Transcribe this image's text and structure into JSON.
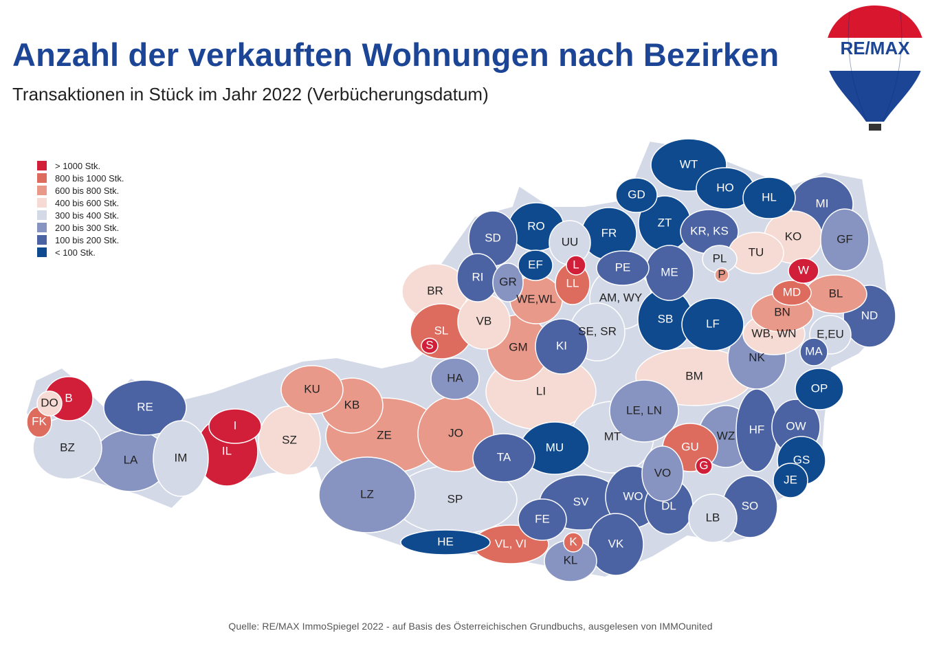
{
  "header": {
    "title": "Anzahl der verkauften Wohnungen nach Bezirken",
    "subtitle": "Transaktionen in Stück im Jahr 2022 (Verbücherungsdatum)"
  },
  "logo": {
    "text": "RE/MAX",
    "icon": "hot-air-balloon-logo"
  },
  "legend": [
    {
      "label": "> 1000 Stk.",
      "color": "#d11f3a"
    },
    {
      "label": "800 bis 1000 Stk.",
      "color": "#dd6b5e"
    },
    {
      "label": "600 bis 800 Stk.",
      "color": "#e8998a"
    },
    {
      "label": "400 bis 600 Stk.",
      "color": "#f5dbd3"
    },
    {
      "label": "300 bis 400 Stk.",
      "color": "#d4d9e8"
    },
    {
      "label": "200 bis 300 Stk.",
      "color": "#8794c2"
    },
    {
      "label": "100 bis 200 Stk.",
      "color": "#4b62a3"
    },
    {
      "label": "< 100 Stk.",
      "color": "#0f4a8f"
    }
  ],
  "districts": [
    {
      "code": "WT",
      "class": 7
    },
    {
      "code": "GD",
      "class": 7
    },
    {
      "code": "HO",
      "class": 7
    },
    {
      "code": "HL",
      "class": 7
    },
    {
      "code": "MI",
      "class": 6
    },
    {
      "code": "RO",
      "class": 7
    },
    {
      "code": "FR",
      "class": 7
    },
    {
      "code": "ZT",
      "class": 7
    },
    {
      "code": "KR, KS",
      "class": 6
    },
    {
      "code": "KO",
      "class": 3
    },
    {
      "code": "GF",
      "class": 5
    },
    {
      "code": "SD",
      "class": 6
    },
    {
      "code": "UU",
      "class": 4
    },
    {
      "code": "TU",
      "class": 3
    },
    {
      "code": "EF",
      "class": 7
    },
    {
      "code": "L",
      "class": 0
    },
    {
      "code": "PE",
      "class": 6
    },
    {
      "code": "ME",
      "class": 6
    },
    {
      "code": "PL",
      "class": 4
    },
    {
      "code": "P",
      "class": 2
    },
    {
      "code": "W",
      "class": 0
    },
    {
      "code": "RI",
      "class": 6
    },
    {
      "code": "GR",
      "class": 5
    },
    {
      "code": "BR",
      "class": 3
    },
    {
      "code": "WE,WL",
      "class": 2
    },
    {
      "code": "LL",
      "class": 1
    },
    {
      "code": "AM, WY",
      "class": 4
    },
    {
      "code": "MD",
      "class": 1
    },
    {
      "code": "BL",
      "class": 2
    },
    {
      "code": "SB",
      "class": 7
    },
    {
      "code": "LF",
      "class": 7
    },
    {
      "code": "BN",
      "class": 2
    },
    {
      "code": "ND",
      "class": 6
    },
    {
      "code": "SL",
      "class": 1
    },
    {
      "code": "VB",
      "class": 3
    },
    {
      "code": "SE, SR",
      "class": 4
    },
    {
      "code": "WB, WN",
      "class": 3
    },
    {
      "code": "E,EU",
      "class": 4
    },
    {
      "code": "S",
      "class": 0
    },
    {
      "code": "GM",
      "class": 2
    },
    {
      "code": "KI",
      "class": 6
    },
    {
      "code": "NK",
      "class": 5
    },
    {
      "code": "MA",
      "class": 6
    },
    {
      "code": "HA",
      "class": 5
    },
    {
      "code": "BM",
      "class": 3
    },
    {
      "code": "OP",
      "class": 7
    },
    {
      "code": "B",
      "class": 0
    },
    {
      "code": "DO",
      "class": 3
    },
    {
      "code": "RE",
      "class": 6
    },
    {
      "code": "KU",
      "class": 2
    },
    {
      "code": "KB",
      "class": 2
    },
    {
      "code": "LI",
      "class": 3
    },
    {
      "code": "FK",
      "class": 1
    },
    {
      "code": "I",
      "class": 0
    },
    {
      "code": "LE, LN",
      "class": 5
    },
    {
      "code": "IL",
      "class": 0
    },
    {
      "code": "ZE",
      "class": 2
    },
    {
      "code": "JO",
      "class": 2
    },
    {
      "code": "MT",
      "class": 4
    },
    {
      "code": "WZ",
      "class": 5
    },
    {
      "code": "HF",
      "class": 6
    },
    {
      "code": "OW",
      "class": 6
    },
    {
      "code": "BZ",
      "class": 4
    },
    {
      "code": "SZ",
      "class": 3
    },
    {
      "code": "MU",
      "class": 7
    },
    {
      "code": "GU",
      "class": 1
    },
    {
      "code": "G",
      "class": 0
    },
    {
      "code": "LA",
      "class": 5
    },
    {
      "code": "IM",
      "class": 4
    },
    {
      "code": "TA",
      "class": 6
    },
    {
      "code": "GS",
      "class": 7
    },
    {
      "code": "VO",
      "class": 5
    },
    {
      "code": "JE",
      "class": 7
    },
    {
      "code": "LZ",
      "class": 5
    },
    {
      "code": "SP",
      "class": 4
    },
    {
      "code": "SV",
      "class": 6
    },
    {
      "code": "WO",
      "class": 6
    },
    {
      "code": "DL",
      "class": 6
    },
    {
      "code": "SO",
      "class": 6
    },
    {
      "code": "FE",
      "class": 6
    },
    {
      "code": "LB",
      "class": 4
    },
    {
      "code": "HE",
      "class": 7
    },
    {
      "code": "VL, VI",
      "class": 1
    },
    {
      "code": "K",
      "class": 1
    },
    {
      "code": "VK",
      "class": 6
    },
    {
      "code": "KL",
      "class": 5
    }
  ],
  "footer": {
    "source": "Quelle: RE/MAX ImmoSpiegel 2022 - auf Basis des Österreichischen Grundbuchs, ausgelesen von IMMOunited"
  }
}
